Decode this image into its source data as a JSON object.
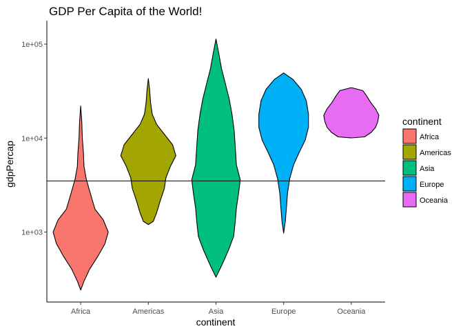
{
  "chart_data": {
    "type": "violin",
    "title": "GDP Per Capita of the World!",
    "xlabel": "continent",
    "ylabel": "gdpPercap",
    "y_scale": "log10",
    "ylim": [
      180,
      150000
    ],
    "y_ticks": [
      {
        "value": 1000,
        "label": "1e+03"
      },
      {
        "value": 10000,
        "label": "1e+04"
      },
      {
        "value": 100000,
        "label": "1e+05"
      }
    ],
    "categories": [
      "Africa",
      "Americas",
      "Asia",
      "Europe",
      "Oceania"
    ],
    "reference_line": {
      "y": 3500
    },
    "grid": false,
    "legend": {
      "title": "continent",
      "position": "right"
    },
    "series": [
      {
        "name": "Africa",
        "color": "#F8766D",
        "min": 241,
        "max": 21951,
        "density": [
          [
            241,
            0.0
          ],
          [
            300,
            0.12
          ],
          [
            400,
            0.32
          ],
          [
            550,
            0.62
          ],
          [
            750,
            0.88
          ],
          [
            1000,
            1.0
          ],
          [
            1350,
            0.82
          ],
          [
            1750,
            0.52
          ],
          [
            2300,
            0.4
          ],
          [
            2900,
            0.3
          ],
          [
            3700,
            0.2
          ],
          [
            5000,
            0.12
          ],
          [
            7000,
            0.1
          ],
          [
            10000,
            0.06
          ],
          [
            15000,
            0.04
          ],
          [
            21951,
            0.0
          ]
        ]
      },
      {
        "name": "Americas",
        "color": "#A3A500",
        "min": 1202,
        "max": 42952,
        "density": [
          [
            1202,
            0.0
          ],
          [
            1300,
            0.18
          ],
          [
            1600,
            0.3
          ],
          [
            2100,
            0.42
          ],
          [
            2900,
            0.58
          ],
          [
            3800,
            0.64
          ],
          [
            5000,
            0.8
          ],
          [
            6500,
            1.0
          ],
          [
            8500,
            0.88
          ],
          [
            11000,
            0.58
          ],
          [
            14000,
            0.3
          ],
          [
            18000,
            0.14
          ],
          [
            24000,
            0.08
          ],
          [
            32000,
            0.05
          ],
          [
            42952,
            0.0
          ]
        ]
      },
      {
        "name": "Asia",
        "color": "#00BF7D",
        "min": 331,
        "max": 113523,
        "density": [
          [
            331,
            0.0
          ],
          [
            450,
            0.22
          ],
          [
            650,
            0.46
          ],
          [
            900,
            0.64
          ],
          [
            1300,
            0.7
          ],
          [
            1800,
            0.74
          ],
          [
            2600,
            0.82
          ],
          [
            3600,
            0.88
          ],
          [
            5200,
            0.74
          ],
          [
            8000,
            0.7
          ],
          [
            12000,
            0.66
          ],
          [
            18000,
            0.58
          ],
          [
            26000,
            0.48
          ],
          [
            38000,
            0.34
          ],
          [
            55000,
            0.2
          ],
          [
            80000,
            0.1
          ],
          [
            113523,
            0.0
          ]
        ]
      },
      {
        "name": "Europe",
        "color": "#00B0F6",
        "min": 974,
        "max": 49357,
        "density": [
          [
            974,
            0.0
          ],
          [
            1300,
            0.06
          ],
          [
            1800,
            0.1
          ],
          [
            2600,
            0.14
          ],
          [
            3700,
            0.22
          ],
          [
            5200,
            0.36
          ],
          [
            7000,
            0.56
          ],
          [
            9500,
            0.78
          ],
          [
            13000,
            0.9
          ],
          [
            18000,
            0.9
          ],
          [
            25000,
            0.82
          ],
          [
            33000,
            0.64
          ],
          [
            42000,
            0.34
          ],
          [
            49357,
            0.0
          ]
        ]
      },
      {
        "name": "Oceania",
        "color": "#E76BF3",
        "min": 10040,
        "max": 34435,
        "density": [
          [
            10040,
            0.0
          ],
          [
            10300,
            0.48
          ],
          [
            11500,
            0.72
          ],
          [
            13000,
            0.88
          ],
          [
            15000,
            0.96
          ],
          [
            17500,
            1.0
          ],
          [
            20500,
            0.88
          ],
          [
            24000,
            0.7
          ],
          [
            28000,
            0.56
          ],
          [
            32000,
            0.42
          ],
          [
            34435,
            0.0
          ]
        ]
      }
    ]
  }
}
